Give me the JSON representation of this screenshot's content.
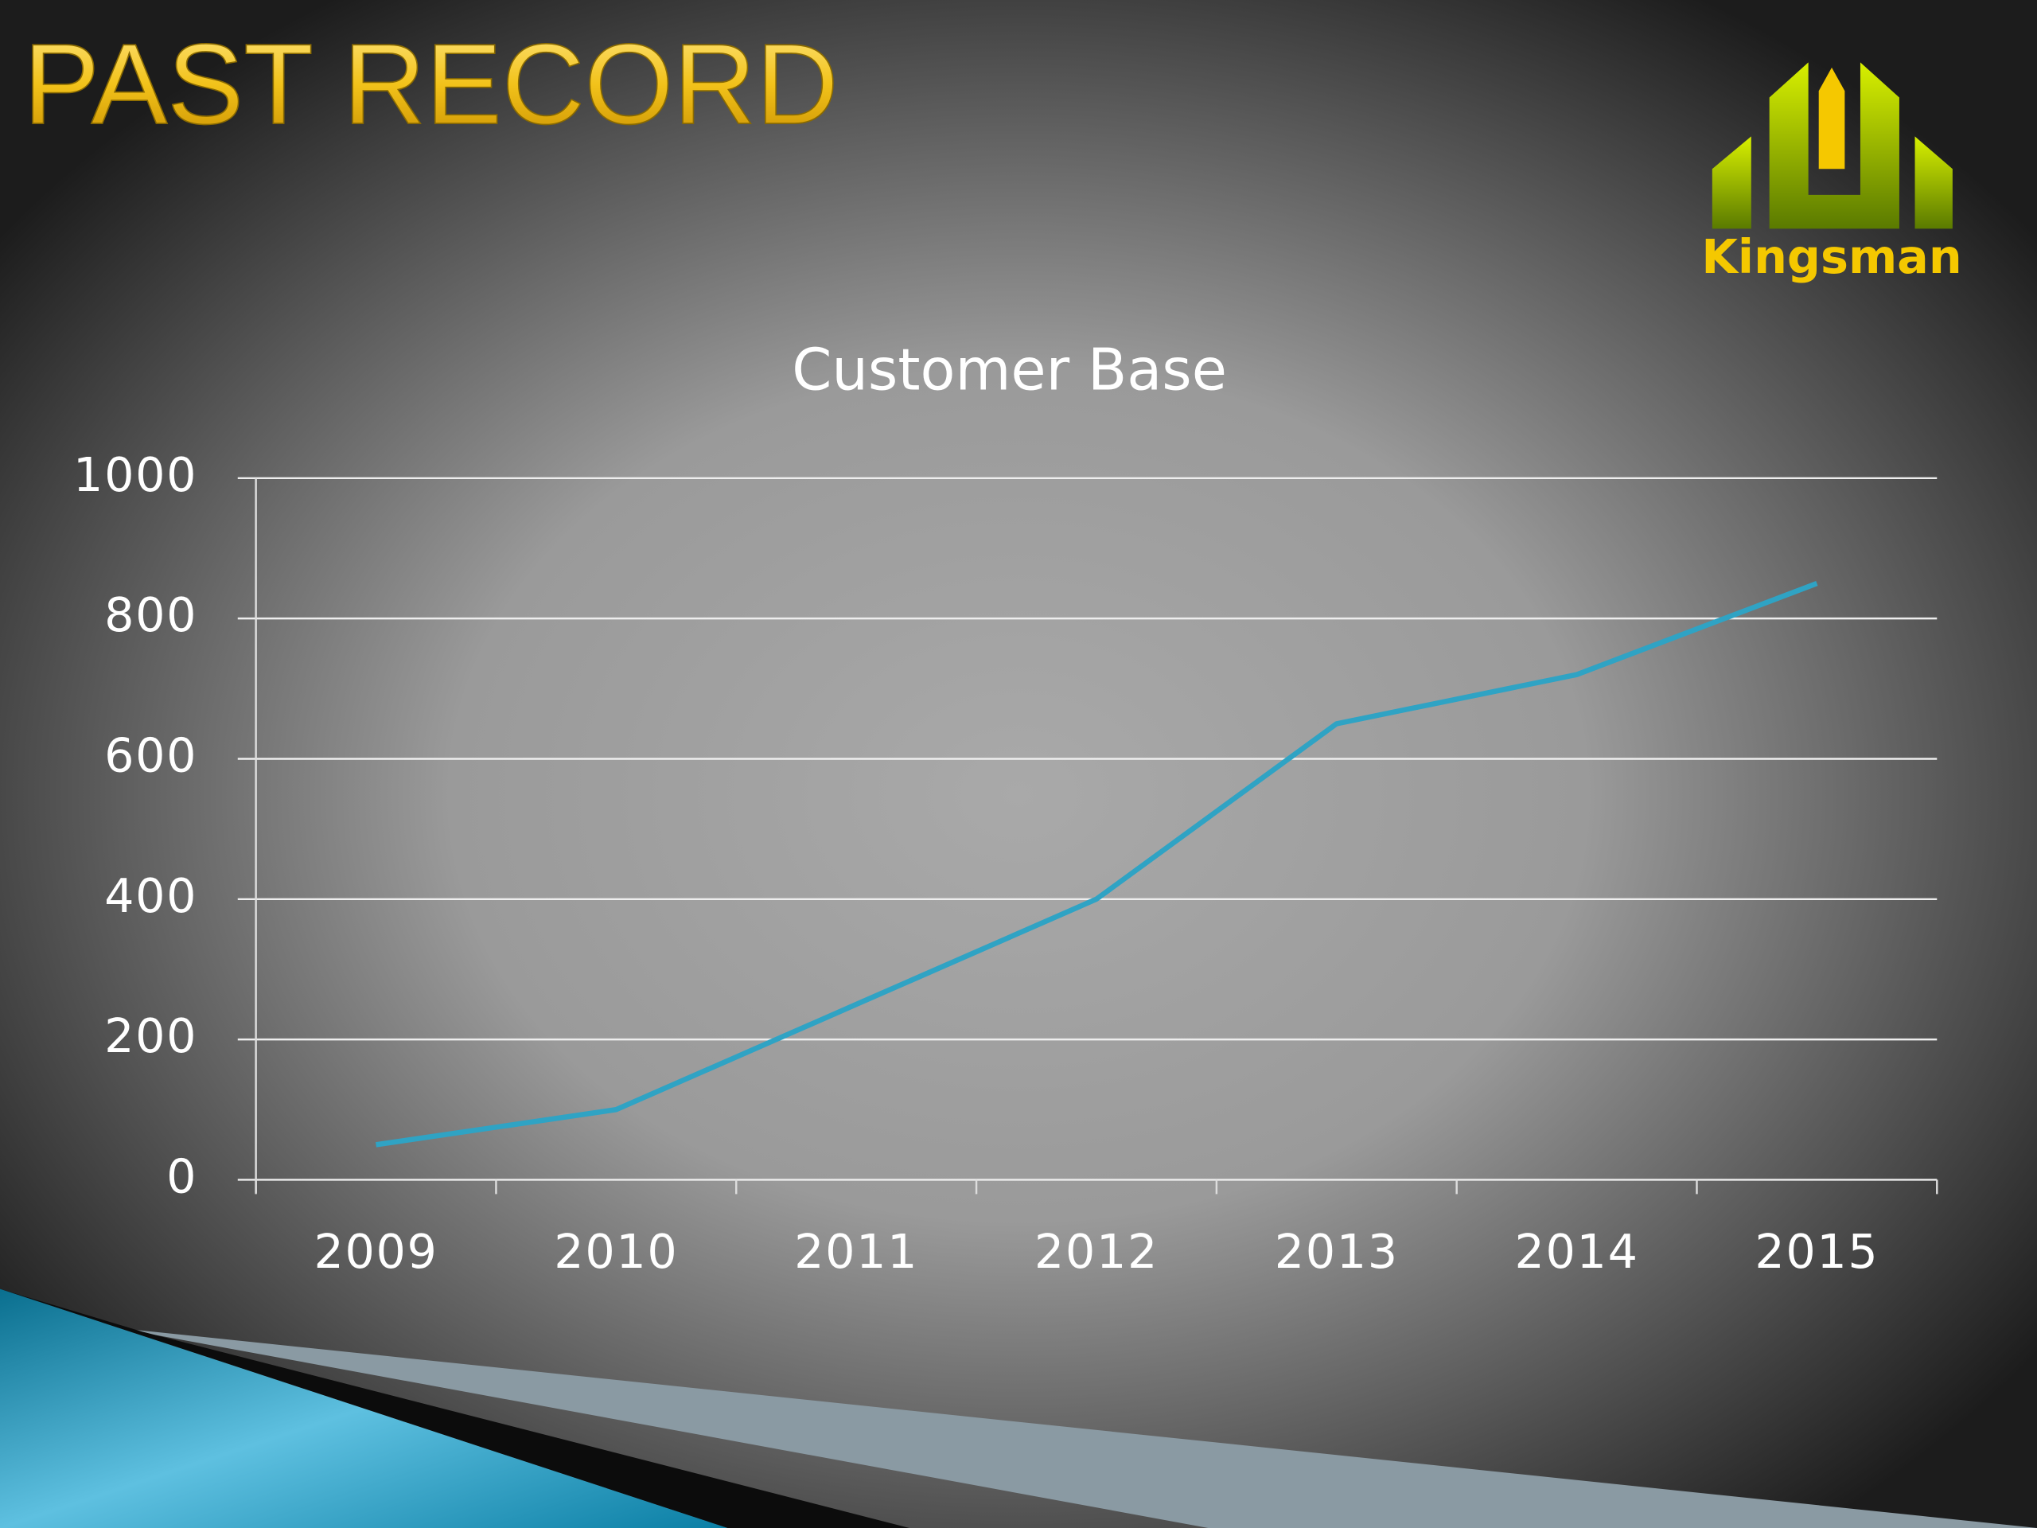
{
  "slide": {
    "title": "PAST RECORD",
    "logo": "Kingsman"
  },
  "chart_data": {
    "type": "line",
    "title": "Customer Base",
    "categories": [
      "2009",
      "2010",
      "2011",
      "2012",
      "2013",
      "2014",
      "2015"
    ],
    "values": [
      50,
      100,
      250,
      400,
      650,
      720,
      850
    ],
    "color": "#2fa3c4",
    "ylim": [
      0,
      1000
    ],
    "yticks": [
      0,
      200,
      400,
      600,
      800,
      1000
    ],
    "grid": true
  }
}
